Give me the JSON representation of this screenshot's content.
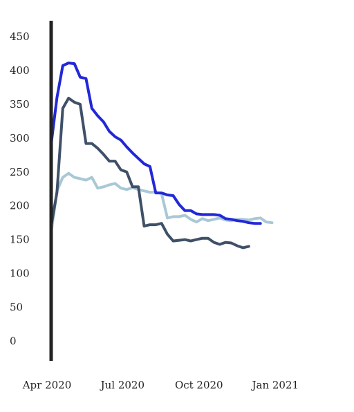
{
  "chart_data": {
    "type": "line",
    "title": "",
    "xlabel": "",
    "ylabel": "",
    "ylim": [
      -30,
      470
    ],
    "x_tick_labels": [
      "Apr 2020",
      "Jul 2020",
      "Oct 2020",
      "Jan 2021"
    ],
    "x_tick_dates": [
      "2020-04-01",
      "2020-07-01",
      "2020-10-01",
      "2021-01-01"
    ],
    "y_ticks": [
      0,
      50,
      100,
      150,
      200,
      250,
      300,
      350,
      400,
      450
    ],
    "grid": false,
    "legend": "none",
    "x": [
      "2020-04-01",
      "2020-04-08",
      "2020-04-15",
      "2020-04-22",
      "2020-04-29",
      "2020-05-06",
      "2020-05-13",
      "2020-05-20",
      "2020-05-27",
      "2020-06-03",
      "2020-06-10",
      "2020-06-17",
      "2020-06-24",
      "2020-07-01",
      "2020-07-08",
      "2020-07-15",
      "2020-07-22",
      "2020-07-29",
      "2020-08-05",
      "2020-08-12",
      "2020-08-19",
      "2020-08-26",
      "2020-09-02",
      "2020-09-09",
      "2020-09-16",
      "2020-09-23",
      "2020-09-30",
      "2020-10-07",
      "2020-10-14",
      "2020-10-21",
      "2020-10-28",
      "2020-11-04",
      "2020-11-11",
      "2020-11-18",
      "2020-11-25",
      "2020-12-02",
      "2020-12-09",
      "2020-12-16",
      "2020-12-23",
      "2020-12-30",
      "2021-01-06"
    ],
    "series": [
      {
        "color": "#2228d8",
        "values": [
          291,
          360,
          407,
          411,
          410,
          390,
          388,
          344,
          333,
          324,
          310,
          302,
          297,
          287,
          278,
          270,
          262,
          258,
          219,
          219,
          216,
          215,
          202,
          193,
          193,
          188,
          187,
          187,
          187,
          186,
          181,
          180,
          178,
          177,
          175,
          174,
          174,
          null,
          null,
          null,
          null
        ]
      },
      {
        "color": "#3f5068",
        "values": [
          170,
          220,
          344,
          359,
          353,
          350,
          292,
          292,
          285,
          276,
          266,
          266,
          253,
          250,
          228,
          228,
          170,
          172,
          172,
          174,
          158,
          148,
          149,
          150,
          148,
          150,
          152,
          152,
          146,
          143,
          146,
          145,
          141,
          138,
          140,
          null,
          null,
          null,
          null,
          null,
          null
        ]
      },
      {
        "color": "#a9c8d6",
        "values": [
          160,
          222,
          242,
          248,
          242,
          240,
          238,
          242,
          226,
          228,
          231,
          233,
          226,
          224,
          227,
          224,
          222,
          220,
          220,
          218,
          182,
          184,
          184,
          186,
          180,
          176,
          181,
          178,
          180,
          182,
          179,
          178,
          180,
          180,
          179,
          181,
          182,
          176,
          175,
          null,
          null
        ]
      }
    ]
  }
}
